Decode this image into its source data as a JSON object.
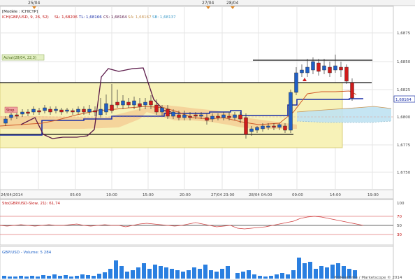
{
  "top_markers": {
    "marker_a": "25/04",
    "marker_b": "27/04",
    "marker_c": "28/04"
  },
  "header": {
    "model_label": "[Modèle : ICHICYP]",
    "indicator_name": "ICH(GBP/USD, 9, 26, 52)",
    "sl": "SL: 1,68206",
    "tl": "TL: 1,68166",
    "cs": "CS: 1,68164",
    "sa": "SA: 1,68167",
    "sb": "SB: 1,68137"
  },
  "annotations": {
    "buy_label": "Achat(28/04, 22,3)",
    "price_tag": "1,68164",
    "left_tag": "Stop"
  },
  "price_axis": {
    "labels": [
      "1,6875",
      "1,6850",
      "1,6825",
      "1,6800",
      "1,6775",
      "1,6750"
    ]
  },
  "time_axis": {
    "labels": [
      "24/04/2014",
      "05:00",
      "10:00",
      "15:00",
      "20:00",
      "27/04 23:00",
      "28/04 04:00",
      "09:00",
      "14:00",
      "19:00"
    ]
  },
  "stochastic": {
    "title": "Sto(GBP/USD-Slow, 21): 61,74",
    "labels": [
      "100",
      "70",
      "50",
      "30"
    ]
  },
  "volume": {
    "title": "GBP/USD - Volume: 5 284"
  },
  "footer": {
    "copyright": "ProRealTime / Marketscope © 2014"
  },
  "colors": {
    "kijun": "#1b2fa8",
    "tenkan": "#d05a2a",
    "chikou": "#5a1848",
    "cloud": "#f7d9a8",
    "cloud_blue": "#bfe2f2",
    "bull": "#1f5fc6",
    "bear": "#d01c1c",
    "range_box": "#f7f2b8",
    "volume": "#2a7fe0",
    "stoch_line": "#d04040"
  }
}
